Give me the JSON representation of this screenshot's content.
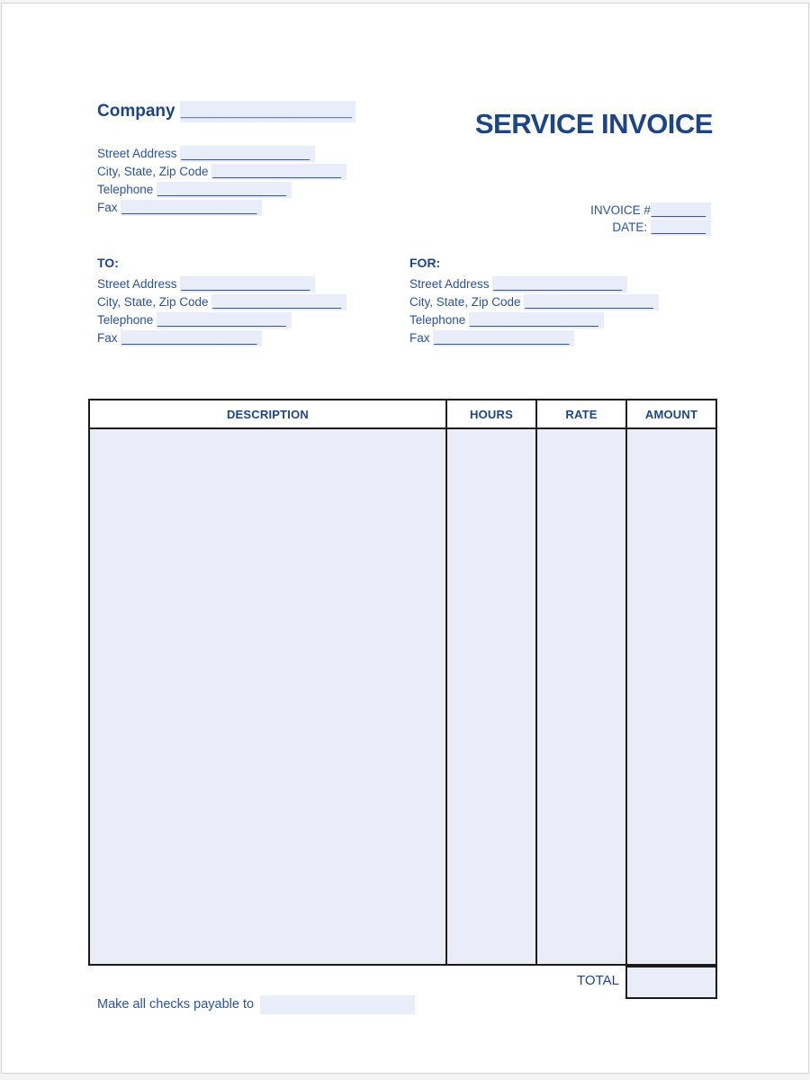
{
  "title": "SERVICE INVOICE",
  "company": {
    "label": "Company",
    "blank": "__________________"
  },
  "company_fields": [
    {
      "label": "Street Address",
      "blank": "___________________"
    },
    {
      "label": "City, State, Zip Code",
      "blank": "___________________"
    },
    {
      "label": "Telephone",
      "blank": "___________________"
    },
    {
      "label": "Fax",
      "blank": "____________________"
    }
  ],
  "invoice_meta": [
    {
      "label": "INVOICE #",
      "blank": "________"
    },
    {
      "label": "DATE:",
      "blank": "________"
    }
  ],
  "to_section": {
    "heading": "TO:",
    "fields": [
      {
        "label": "Street Address",
        "blank": "___________________"
      },
      {
        "label": "City, State, Zip Code",
        "blank": "___________________"
      },
      {
        "label": "Telephone",
        "blank": "___________________"
      },
      {
        "label": "Fax",
        "blank": "____________________"
      }
    ]
  },
  "for_section": {
    "heading": "FOR:",
    "fields": [
      {
        "label": "Street Address",
        "blank": "___________________"
      },
      {
        "label": "City, State, Zip Code",
        "blank": "___________________"
      },
      {
        "label": "Telephone",
        "blank": "___________________"
      },
      {
        "label": "Fax",
        "blank": "____________________"
      }
    ]
  },
  "table": {
    "headers": [
      "DESCRIPTION",
      "HOURS",
      "RATE",
      "AMOUNT"
    ],
    "total_label": "TOTAL"
  },
  "footer": {
    "text": "Make all checks payable to"
  },
  "colors": {
    "title_blue": "#1D4586",
    "text_blue": "#2A529E",
    "highlight": "#E9EDF9",
    "table_fill": "#EAEDF8",
    "table_border": "#1A1A1A"
  }
}
